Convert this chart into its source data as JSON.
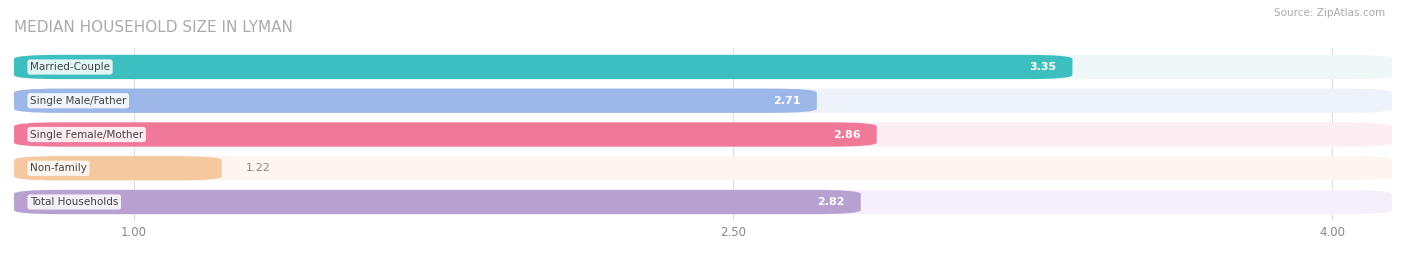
{
  "title": "MEDIAN HOUSEHOLD SIZE IN LYMAN",
  "source": "Source: ZipAtlas.com",
  "categories": [
    "Married-Couple",
    "Single Male/Father",
    "Single Female/Mother",
    "Non-family",
    "Total Households"
  ],
  "values": [
    3.35,
    2.71,
    2.86,
    1.22,
    2.82
  ],
  "bar_colors": [
    "#3dbfbf",
    "#9db8e8",
    "#f07898",
    "#f5c8a0",
    "#b8a0d0"
  ],
  "bar_bg_colors": [
    "#eef8f8",
    "#eef2fb",
    "#fdeef4",
    "#fef6ee",
    "#f5f0fa"
  ],
  "xlim_data": [
    0.7,
    4.15
  ],
  "xlim_bars": [
    0.7,
    4.15
  ],
  "xticks": [
    1.0,
    2.5,
    4.0
  ],
  "figsize": [
    14.06,
    2.69
  ],
  "dpi": 100,
  "bg_color": "#ffffff",
  "title_color": "#aaaaaa",
  "source_color": "#aaaaaa",
  "label_bg_color": "#ffffff",
  "value_inside_color": "#ffffff",
  "value_outside_color": "#888888",
  "inside_threshold": 2.5
}
